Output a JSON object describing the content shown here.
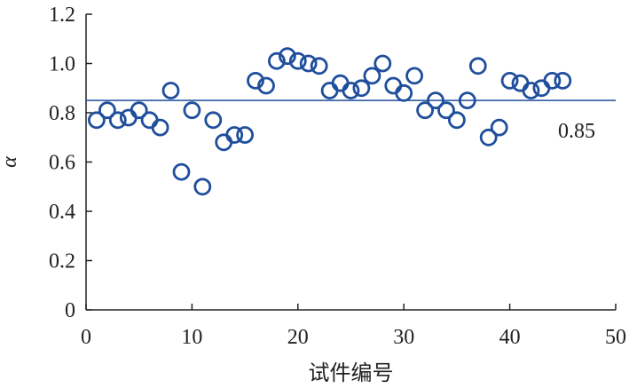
{
  "chart_data": {
    "type": "scatter",
    "title": "",
    "xlabel": "试件编号",
    "ylabel": "α",
    "xlim": [
      0,
      50
    ],
    "ylim": [
      0,
      1.2
    ],
    "x_ticks": [
      "0",
      "10",
      "20",
      "30",
      "40",
      "50"
    ],
    "y_ticks": [
      "0",
      "0.2",
      "0.4",
      "0.6",
      "0.8",
      "1.0",
      "1.2"
    ],
    "grid": false,
    "marker": "open-circle",
    "marker_color": "#1f4e9c",
    "series": [
      {
        "x": [
          1,
          2,
          3,
          4,
          5,
          6,
          7,
          8,
          9,
          10,
          11,
          12,
          13,
          14,
          15,
          16,
          17,
          18,
          19,
          20,
          21,
          22,
          23,
          24,
          25,
          26,
          27,
          28,
          29,
          30,
          31,
          32,
          33,
          34,
          35,
          36,
          37,
          38,
          39,
          40,
          41,
          42,
          43,
          44,
          45
        ],
        "y": [
          0.77,
          0.81,
          0.77,
          0.78,
          0.81,
          0.77,
          0.74,
          0.89,
          0.56,
          0.81,
          0.5,
          0.77,
          0.68,
          0.71,
          0.71,
          0.93,
          0.91,
          1.01,
          1.03,
          1.01,
          1.0,
          0.99,
          0.89,
          0.92,
          0.89,
          0.9,
          0.95,
          1.0,
          0.91,
          0.88,
          0.95,
          0.81,
          0.85,
          0.81,
          0.77,
          0.85,
          0.99,
          0.7,
          0.74,
          0.93,
          0.92,
          0.89,
          0.9,
          0.93,
          0.93
        ]
      }
    ],
    "reference_line": {
      "value": 0.85,
      "label": "0.85",
      "color": "#1f4e9c"
    }
  }
}
